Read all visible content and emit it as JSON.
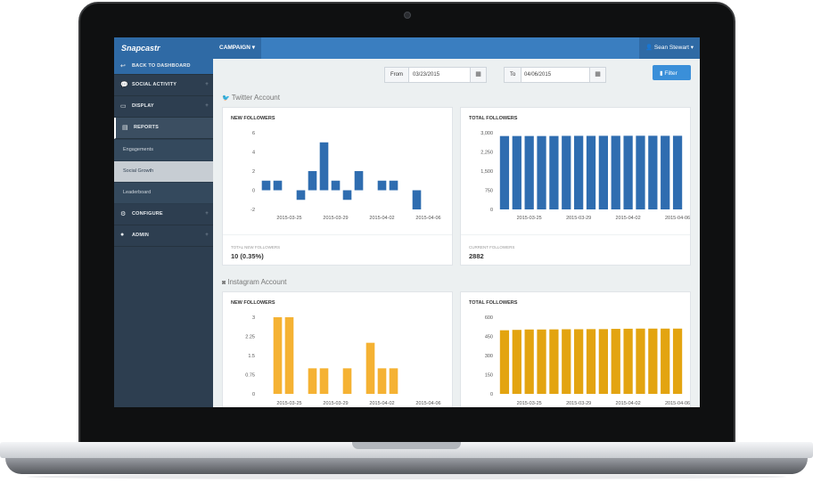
{
  "app": {
    "brand": "Snapcastr",
    "campaign_label": "CAMPAIGN ▾",
    "user_label": "Sean Stewart ▾"
  },
  "sidebar": {
    "items": [
      {
        "label": "BACK TO DASHBOARD",
        "icon": "arrow-back-icon"
      },
      {
        "label": "SOCIAL ACTIVITY",
        "icon": "chat-icon",
        "expandable": true
      },
      {
        "label": "DISPLAY",
        "icon": "monitor-icon",
        "expandable": true
      },
      {
        "label": "REPORTS",
        "icon": "chart-icon"
      },
      {
        "label": "CONFIGURE",
        "icon": "gears-icon",
        "expandable": true
      },
      {
        "label": "ADMIN",
        "icon": "globe-icon",
        "expandable": true
      }
    ],
    "subitems": [
      {
        "label": "Engagements"
      },
      {
        "label": "Social Growth",
        "active": true
      },
      {
        "label": "Leaderboard"
      }
    ]
  },
  "filter": {
    "from_label": "From",
    "from_value": "03/23/2015",
    "to_label": "To",
    "to_value": "04/06/2015",
    "button_label": "Filter"
  },
  "sections": {
    "twitter": "Twitter Account",
    "instagram": "Instagram Account"
  },
  "cards": {
    "tw_new": {
      "title": "NEW FOLLOWERS",
      "foot_label": "TOTAL NEW FOLLOWERS",
      "foot_value": "10 (0.35%)"
    },
    "tw_total": {
      "title": "TOTAL FOLLOWERS",
      "foot_label": "CURRENT FOLLOWERS",
      "foot_value": "2882"
    },
    "ig_new": {
      "title": "NEW FOLLOWERS"
    },
    "ig_total": {
      "title": "TOTAL FOLLOWERS"
    }
  },
  "colors": {
    "twitter_bar": "#2f6db0",
    "instagram_bar": "#f5b233",
    "instagram_total_bar": "#e3a410",
    "accent": "#3a7ec0"
  },
  "chart_data": [
    {
      "type": "bar",
      "title": "NEW FOLLOWERS",
      "series_color": "#2f6db0",
      "categories": [
        "2015-03-23",
        "2015-03-24",
        "2015-03-25",
        "2015-03-26",
        "2015-03-27",
        "2015-03-28",
        "2015-03-29",
        "2015-03-30",
        "2015-03-31",
        "2015-04-01",
        "2015-04-02",
        "2015-04-03",
        "2015-04-04",
        "2015-04-05",
        "2015-04-06",
        "2015-04-07"
      ],
      "values": [
        1,
        1,
        0,
        -1,
        2,
        5,
        1,
        -1,
        2,
        0,
        1,
        1,
        0,
        -2,
        0,
        0
      ],
      "ylim": [
        -2,
        6
      ],
      "yticks": [
        "6",
        "4",
        "2",
        "0",
        "-2"
      ],
      "xticks": [
        "2015-03-25",
        "2015-03-29",
        "2015-04-02",
        "2015-04-06"
      ]
    },
    {
      "type": "bar",
      "title": "TOTAL FOLLOWERS",
      "series_color": "#2f6db0",
      "categories": [
        "2015-03-23",
        "2015-03-24",
        "2015-03-25",
        "2015-03-26",
        "2015-03-27",
        "2015-03-28",
        "2015-03-29",
        "2015-03-30",
        "2015-03-31",
        "2015-04-01",
        "2015-04-02",
        "2015-04-03",
        "2015-04-04",
        "2015-04-05",
        "2015-04-06"
      ],
      "values": [
        2872,
        2873,
        2873,
        2872,
        2874,
        2879,
        2880,
        2879,
        2881,
        2881,
        2882,
        2883,
        2883,
        2881,
        2882
      ],
      "ylim": [
        0,
        3000
      ],
      "yticks": [
        "3,000",
        "2,250",
        "1,500",
        "750",
        "0"
      ],
      "xticks": [
        "2015-03-25",
        "2015-03-29",
        "2015-04-02",
        "2015-04-06"
      ]
    },
    {
      "type": "bar",
      "title": "NEW FOLLOWERS",
      "series_color": "#f5b233",
      "categories": [
        "2015-03-23",
        "2015-03-24",
        "2015-03-25",
        "2015-03-26",
        "2015-03-27",
        "2015-03-28",
        "2015-03-29",
        "2015-03-30",
        "2015-03-31",
        "2015-04-01",
        "2015-04-02",
        "2015-04-03",
        "2015-04-04",
        "2015-04-05",
        "2015-04-06",
        "2015-04-07"
      ],
      "values": [
        0,
        3,
        3,
        0,
        1,
        1,
        0,
        1,
        0,
        2,
        1,
        1,
        0,
        0,
        0,
        0
      ],
      "ylim": [
        0,
        3
      ],
      "yticks": [
        "3",
        "2.25",
        "1.5",
        "0.75",
        "0"
      ],
      "xticks": [
        "2015-03-25",
        "2015-03-29",
        "2015-04-02",
        "2015-04-06"
      ]
    },
    {
      "type": "bar",
      "title": "TOTAL FOLLOWERS",
      "series_color": "#e3a410",
      "categories": [
        "2015-03-23",
        "2015-03-24",
        "2015-03-25",
        "2015-03-26",
        "2015-03-27",
        "2015-03-28",
        "2015-03-29",
        "2015-03-30",
        "2015-03-31",
        "2015-04-01",
        "2015-04-02",
        "2015-04-03",
        "2015-04-04",
        "2015-04-05",
        "2015-04-06"
      ],
      "values": [
        498,
        501,
        504,
        504,
        505,
        506,
        506,
        507,
        507,
        509,
        510,
        511,
        511,
        511,
        511
      ],
      "ylim": [
        0,
        600
      ],
      "yticks": [
        "600",
        "450",
        "300",
        "150",
        "0"
      ],
      "xticks": [
        "2015-03-25",
        "2015-03-29",
        "2015-04-02",
        "2015-04-06"
      ]
    }
  ]
}
